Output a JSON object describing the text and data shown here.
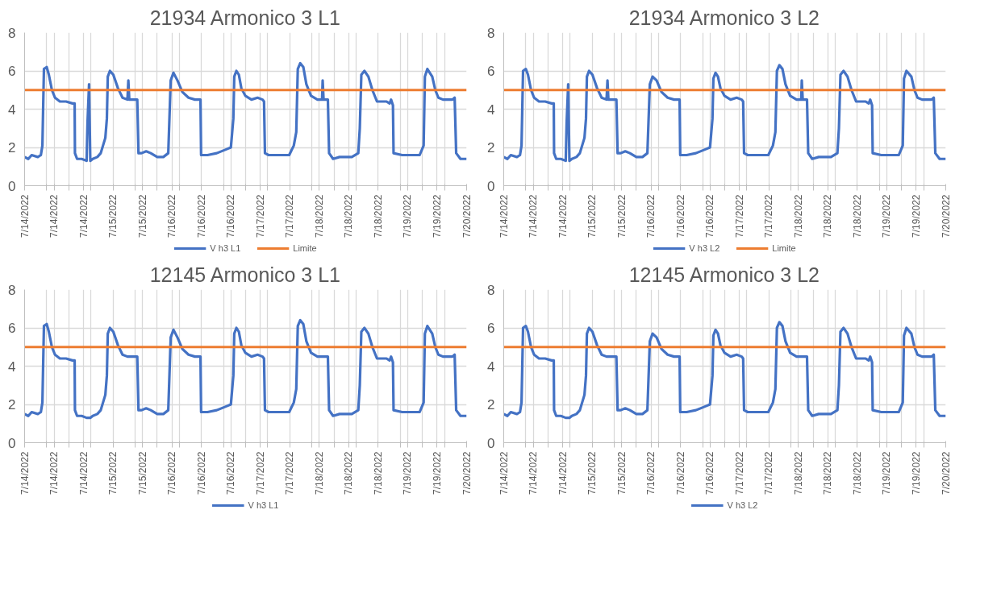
{
  "chart_data": [
    {
      "type": "line",
      "title": "21934 Armonico 3 L1",
      "legend": "bottom",
      "grid": true,
      "xlim": [
        "2022-07-14T00:00",
        "2022-07-20T00:00"
      ],
      "ylim": [
        0,
        8
      ],
      "yticks": [
        0,
        2,
        4,
        6,
        8
      ],
      "xticks": [
        {
          "value": "2022-07-14T00:00",
          "label": "7/14/2022"
        },
        {
          "value": "2022-07-14T07:12",
          "label": null
        },
        {
          "value": "2022-07-14T09:36",
          "label": "7/14/2022"
        },
        {
          "value": "2022-07-14T14:24",
          "label": null
        },
        {
          "value": "2022-07-14T19:12",
          "label": "7/14/2022"
        },
        {
          "value": "2022-07-14T21:36",
          "label": null
        },
        {
          "value": "2022-07-15T04:48",
          "label": "7/15/2022"
        },
        {
          "value": "2022-07-15T12:00",
          "label": null
        },
        {
          "value": "2022-07-15T14:24",
          "label": "7/15/2022"
        },
        {
          "value": "2022-07-15T19:12",
          "label": null
        },
        {
          "value": "2022-07-16T00:00",
          "label": "7/16/2022"
        },
        {
          "value": "2022-07-16T02:24",
          "label": null
        },
        {
          "value": "2022-07-16T09:36",
          "label": "7/16/2022"
        },
        {
          "value": "2022-07-16T16:48",
          "label": null
        },
        {
          "value": "2022-07-16T19:12",
          "label": "7/16/2022"
        },
        {
          "value": "2022-07-17T00:00",
          "label": null
        },
        {
          "value": "2022-07-17T04:48",
          "label": "7/17/2022"
        },
        {
          "value": "2022-07-17T07:12",
          "label": null
        },
        {
          "value": "2022-07-17T14:24",
          "label": "7/17/2022"
        },
        {
          "value": "2022-07-17T21:36",
          "label": null
        },
        {
          "value": "2022-07-18T00:00",
          "label": "7/18/2022"
        },
        {
          "value": "2022-07-18T04:48",
          "label": null
        },
        {
          "value": "2022-07-18T09:36",
          "label": "7/18/2022"
        },
        {
          "value": "2022-07-18T12:00",
          "label": null
        },
        {
          "value": "2022-07-18T19:12",
          "label": "7/18/2022"
        },
        {
          "value": "2022-07-19T02:24",
          "label": null
        },
        {
          "value": "2022-07-19T04:48",
          "label": "7/19/2022"
        },
        {
          "value": "2022-07-19T09:36",
          "label": null
        },
        {
          "value": "2022-07-19T14:24",
          "label": "7/19/2022"
        },
        {
          "value": "2022-07-19T16:48",
          "label": null
        },
        {
          "value": "2022-07-20T00:00",
          "label": "7/20/2022"
        }
      ],
      "x": [
        "2022-07-14T00:00",
        "2022-07-14T01:12",
        "2022-07-14T02:18",
        "2022-07-14T04:18",
        "2022-07-14T05:18",
        "2022-07-14T05:48",
        "2022-07-14T06:18",
        "2022-07-14T07:12",
        "2022-07-14T07:54",
        "2022-07-14T08:54",
        "2022-07-14T09:54",
        "2022-07-14T11:30",
        "2022-07-14T13:30",
        "2022-07-14T15:36",
        "2022-07-14T16:18",
        "2022-07-14T16:24",
        "2022-07-14T17:06",
        "2022-07-14T18:36",
        "2022-07-14T20:12",
        "2022-07-14T20:30",
        "2022-07-14T21:00",
        "2022-07-14T21:24",
        "2022-07-14T22:12",
        "2022-07-14T23:42",
        "2022-07-15T00:48",
        "2022-07-15T02:18",
        "2022-07-15T02:48",
        "2022-07-15T03:06",
        "2022-07-15T03:48",
        "2022-07-15T04:54",
        "2022-07-15T06:24",
        "2022-07-15T07:54",
        "2022-07-15T09:30",
        "2022-07-15T09:48",
        "2022-07-15T10:06",
        "2022-07-15T11:30",
        "2022-07-15T12:42",
        "2022-07-15T13:06",
        "2022-07-15T14:06",
        "2022-07-15T15:36",
        "2022-07-15T17:06",
        "2022-07-15T19:12",
        "2022-07-15T21:12",
        "2022-07-15T22:48",
        "2022-07-15T23:36",
        "2022-07-16T00:30",
        "2022-07-16T01:48",
        "2022-07-16T03:24",
        "2022-07-16T05:24",
        "2022-07-16T07:30",
        "2022-07-16T09:18",
        "2022-07-16T09:30",
        "2022-07-16T11:36",
        "2022-07-16T14:36",
        "2022-07-16T17:42",
        "2022-07-16T19:12",
        "2022-07-16T20:00",
        "2022-07-16T20:18",
        "2022-07-16T21:00",
        "2022-07-16T21:48",
        "2022-07-16T22:36",
        "2022-07-16T23:54",
        "2022-07-17T01:54",
        "2022-07-17T03:54",
        "2022-07-17T05:30",
        "2022-07-17T06:00",
        "2022-07-17T06:18",
        "2022-07-17T07:30",
        "2022-07-17T10:06",
        "2022-07-17T14:12",
        "2022-07-17T15:42",
        "2022-07-17T16:30",
        "2022-07-17T17:00",
        "2022-07-17T17:48",
        "2022-07-17T18:48",
        "2022-07-17T19:48",
        "2022-07-17T21:18",
        "2022-07-17T23:24",
        "2022-07-18T00:54",
        "2022-07-18T01:06",
        "2022-07-18T01:24",
        "2022-07-18T02:48",
        "2022-07-18T03:12",
        "2022-07-18T04:30",
        "2022-07-18T06:36",
        "2022-07-18T10:36",
        "2022-07-18T12:42",
        "2022-07-18T13:12",
        "2022-07-18T13:42",
        "2022-07-18T14:42",
        "2022-07-18T16:00",
        "2022-07-18T17:18",
        "2022-07-18T18:48",
        "2022-07-18T21:54",
        "2022-07-18T22:54",
        "2022-07-18T23:24",
        "2022-07-19T00:00",
        "2022-07-19T00:12",
        "2022-07-19T03:00",
        "2022-07-19T06:06",
        "2022-07-19T08:42",
        "2022-07-19T10:00",
        "2022-07-19T10:24",
        "2022-07-19T11:12",
        "2022-07-19T12:48",
        "2022-07-19T13:48",
        "2022-07-19T14:48",
        "2022-07-19T16:18",
        "2022-07-19T19:24",
        "2022-07-19T20:06",
        "2022-07-19T20:36",
        "2022-07-19T22:00",
        "2022-07-20T00:00"
      ],
      "series": [
        {
          "name": "V h3 L1",
          "color": "#4472c4",
          "values": [
            1.5,
            1.4,
            1.6,
            1.5,
            1.6,
            2.1,
            6.1,
            6.2,
            5.8,
            5.0,
            4.6,
            4.4,
            4.4,
            4.3,
            4.3,
            1.7,
            1.4,
            1.4,
            1.3,
            3.3,
            5.3,
            1.3,
            1.4,
            1.5,
            1.7,
            2.5,
            3.5,
            5.7,
            6.0,
            5.8,
            5.1,
            4.6,
            4.5,
            5.5,
            4.5,
            4.5,
            4.5,
            1.7,
            1.7,
            1.8,
            1.7,
            1.5,
            1.5,
            1.7,
            5.5,
            5.9,
            5.5,
            4.9,
            4.6,
            4.5,
            4.5,
            1.6,
            1.6,
            1.7,
            1.9,
            2.0,
            3.5,
            5.7,
            6.0,
            5.8,
            5.1,
            4.7,
            4.5,
            4.6,
            4.5,
            4.4,
            1.7,
            1.6,
            1.6,
            1.6,
            2.1,
            2.8,
            6.1,
            6.4,
            6.2,
            5.3,
            4.7,
            4.5,
            4.5,
            5.5,
            4.5,
            4.5,
            1.7,
            1.4,
            1.5,
            1.5,
            1.7,
            3.0,
            5.8,
            6.0,
            5.7,
            5.0,
            4.4,
            4.4,
            4.3,
            4.5,
            4.2,
            1.7,
            1.6,
            1.6,
            1.6,
            2.1,
            5.7,
            6.1,
            5.7,
            5.0,
            4.6,
            4.5,
            4.5,
            4.6,
            1.7,
            1.4,
            1.4
          ]
        },
        {
          "name": "Limite",
          "color": "#ed7d31",
          "x": [
            "2022-07-14T00:00",
            "2022-07-20T00:00"
          ],
          "values": [
            5,
            5
          ]
        }
      ]
    },
    {
      "type": "line",
      "title": "21934 Armonico 3 L2",
      "legend": "bottom",
      "grid": true,
      "xlim": [
        "2022-07-14T00:00",
        "2022-07-20T00:00"
      ],
      "ylim": [
        0,
        8
      ],
      "yticks": [
        0,
        2,
        4,
        6,
        8
      ],
      "xticks": [
        {
          "value": "2022-07-14T00:00",
          "label": "7/14/2022"
        },
        {
          "value": "2022-07-14T07:12",
          "label": null
        },
        {
          "value": "2022-07-14T09:36",
          "label": "7/14/2022"
        },
        {
          "value": "2022-07-14T14:24",
          "label": null
        },
        {
          "value": "2022-07-14T19:12",
          "label": "7/14/2022"
        },
        {
          "value": "2022-07-14T21:36",
          "label": null
        },
        {
          "value": "2022-07-15T04:48",
          "label": "7/15/2022"
        },
        {
          "value": "2022-07-15T12:00",
          "label": null
        },
        {
          "value": "2022-07-15T14:24",
          "label": "7/15/2022"
        },
        {
          "value": "2022-07-15T19:12",
          "label": null
        },
        {
          "value": "2022-07-16T00:00",
          "label": "7/16/2022"
        },
        {
          "value": "2022-07-16T02:24",
          "label": null
        },
        {
          "value": "2022-07-16T09:36",
          "label": "7/16/2022"
        },
        {
          "value": "2022-07-16T16:48",
          "label": null
        },
        {
          "value": "2022-07-16T19:12",
          "label": "7/16/2022"
        },
        {
          "value": "2022-07-17T00:00",
          "label": null
        },
        {
          "value": "2022-07-17T04:48",
          "label": "7/17/2022"
        },
        {
          "value": "2022-07-17T07:12",
          "label": null
        },
        {
          "value": "2022-07-17T14:24",
          "label": "7/17/2022"
        },
        {
          "value": "2022-07-17T21:36",
          "label": null
        },
        {
          "value": "2022-07-18T00:00",
          "label": "7/18/2022"
        },
        {
          "value": "2022-07-18T04:48",
          "label": null
        },
        {
          "value": "2022-07-18T09:36",
          "label": "7/18/2022"
        },
        {
          "value": "2022-07-18T12:00",
          "label": null
        },
        {
          "value": "2022-07-18T19:12",
          "label": "7/18/2022"
        },
        {
          "value": "2022-07-19T02:24",
          "label": null
        },
        {
          "value": "2022-07-19T04:48",
          "label": "7/19/2022"
        },
        {
          "value": "2022-07-19T09:36",
          "label": null
        },
        {
          "value": "2022-07-19T14:24",
          "label": "7/19/2022"
        },
        {
          "value": "2022-07-19T16:48",
          "label": null
        },
        {
          "value": "2022-07-20T00:00",
          "label": "7/20/2022"
        }
      ],
      "x": [
        "2022-07-14T00:00",
        "2022-07-14T01:12",
        "2022-07-14T02:18",
        "2022-07-14T04:18",
        "2022-07-14T05:18",
        "2022-07-14T05:48",
        "2022-07-14T06:18",
        "2022-07-14T07:12",
        "2022-07-14T07:54",
        "2022-07-14T08:54",
        "2022-07-14T09:54",
        "2022-07-14T11:30",
        "2022-07-14T13:30",
        "2022-07-14T15:36",
        "2022-07-14T16:18",
        "2022-07-14T16:24",
        "2022-07-14T17:06",
        "2022-07-14T18:36",
        "2022-07-14T20:12",
        "2022-07-14T20:30",
        "2022-07-14T21:00",
        "2022-07-14T21:24",
        "2022-07-14T22:12",
        "2022-07-14T23:42",
        "2022-07-15T00:48",
        "2022-07-15T02:18",
        "2022-07-15T02:48",
        "2022-07-15T03:06",
        "2022-07-15T03:48",
        "2022-07-15T04:54",
        "2022-07-15T06:24",
        "2022-07-15T07:54",
        "2022-07-15T09:30",
        "2022-07-15T09:48",
        "2022-07-15T10:06",
        "2022-07-15T11:30",
        "2022-07-15T12:42",
        "2022-07-15T13:06",
        "2022-07-15T14:06",
        "2022-07-15T15:36",
        "2022-07-15T17:06",
        "2022-07-15T19:12",
        "2022-07-15T21:12",
        "2022-07-15T22:48",
        "2022-07-15T23:36",
        "2022-07-16T00:30",
        "2022-07-16T01:48",
        "2022-07-16T03:24",
        "2022-07-16T05:24",
        "2022-07-16T07:30",
        "2022-07-16T09:18",
        "2022-07-16T09:30",
        "2022-07-16T11:36",
        "2022-07-16T14:36",
        "2022-07-16T17:42",
        "2022-07-16T19:12",
        "2022-07-16T20:00",
        "2022-07-16T20:18",
        "2022-07-16T21:00",
        "2022-07-16T21:48",
        "2022-07-16T22:36",
        "2022-07-16T23:54",
        "2022-07-17T01:54",
        "2022-07-17T03:54",
        "2022-07-17T05:30",
        "2022-07-17T06:00",
        "2022-07-17T06:18",
        "2022-07-17T07:30",
        "2022-07-17T10:06",
        "2022-07-17T14:12",
        "2022-07-17T15:42",
        "2022-07-17T16:30",
        "2022-07-17T17:00",
        "2022-07-17T17:48",
        "2022-07-17T18:48",
        "2022-07-17T19:48",
        "2022-07-17T21:18",
        "2022-07-17T23:24",
        "2022-07-18T00:54",
        "2022-07-18T01:06",
        "2022-07-18T01:24",
        "2022-07-18T02:48",
        "2022-07-18T03:12",
        "2022-07-18T04:30",
        "2022-07-18T06:36",
        "2022-07-18T10:36",
        "2022-07-18T12:42",
        "2022-07-18T13:12",
        "2022-07-18T13:42",
        "2022-07-18T14:42",
        "2022-07-18T16:00",
        "2022-07-18T17:18",
        "2022-07-18T18:48",
        "2022-07-18T21:54",
        "2022-07-18T22:54",
        "2022-07-18T23:24",
        "2022-07-19T00:00",
        "2022-07-19T00:12",
        "2022-07-19T03:00",
        "2022-07-19T06:06",
        "2022-07-19T08:42",
        "2022-07-19T10:00",
        "2022-07-19T10:24",
        "2022-07-19T11:12",
        "2022-07-19T12:48",
        "2022-07-19T13:48",
        "2022-07-19T14:48",
        "2022-07-19T16:18",
        "2022-07-19T19:24",
        "2022-07-19T20:06",
        "2022-07-19T20:36",
        "2022-07-19T22:00",
        "2022-07-20T00:00"
      ],
      "series": [
        {
          "name": "V h3 L2",
          "color": "#4472c4",
          "values": [
            1.5,
            1.4,
            1.6,
            1.5,
            1.6,
            2.1,
            6.0,
            6.1,
            5.8,
            5.0,
            4.6,
            4.4,
            4.4,
            4.3,
            4.3,
            1.7,
            1.4,
            1.4,
            1.3,
            3.3,
            5.3,
            1.3,
            1.4,
            1.5,
            1.7,
            2.5,
            3.5,
            5.7,
            6.0,
            5.8,
            5.1,
            4.6,
            4.5,
            5.5,
            4.5,
            4.5,
            4.5,
            1.7,
            1.7,
            1.8,
            1.7,
            1.5,
            1.5,
            1.7,
            5.3,
            5.7,
            5.5,
            4.9,
            4.6,
            4.5,
            4.5,
            1.6,
            1.6,
            1.7,
            1.9,
            2.0,
            3.5,
            5.6,
            5.9,
            5.7,
            5.1,
            4.7,
            4.5,
            4.6,
            4.5,
            4.4,
            1.7,
            1.6,
            1.6,
            1.6,
            2.1,
            2.8,
            6.0,
            6.3,
            6.1,
            5.3,
            4.7,
            4.5,
            4.5,
            5.5,
            4.5,
            4.5,
            1.7,
            1.4,
            1.5,
            1.5,
            1.7,
            3.0,
            5.8,
            6.0,
            5.7,
            5.0,
            4.4,
            4.4,
            4.3,
            4.5,
            4.2,
            1.7,
            1.6,
            1.6,
            1.6,
            2.1,
            5.6,
            6.0,
            5.7,
            5.0,
            4.6,
            4.5,
            4.5,
            4.6,
            1.7,
            1.4,
            1.4
          ]
        },
        {
          "name": "Limite",
          "color": "#ed7d31",
          "x": [
            "2022-07-14T00:00",
            "2022-07-20T00:00"
          ],
          "values": [
            5,
            5
          ]
        }
      ]
    },
    {
      "type": "line",
      "title": "12145 Armonico 3 L1",
      "legend": "bottom",
      "grid": true,
      "xlim": [
        "2022-07-14T00:00",
        "2022-07-20T00:00"
      ],
      "ylim": [
        0,
        8
      ],
      "yticks": [
        0,
        2,
        4,
        6,
        8
      ],
      "xticks": [
        {
          "value": "2022-07-14T00:00",
          "label": "7/14/2022"
        },
        {
          "value": "2022-07-14T07:12",
          "label": null
        },
        {
          "value": "2022-07-14T09:36",
          "label": "7/14/2022"
        },
        {
          "value": "2022-07-14T14:24",
          "label": null
        },
        {
          "value": "2022-07-14T19:12",
          "label": "7/14/2022"
        },
        {
          "value": "2022-07-14T21:36",
          "label": null
        },
        {
          "value": "2022-07-15T04:48",
          "label": "7/15/2022"
        },
        {
          "value": "2022-07-15T12:00",
          "label": null
        },
        {
          "value": "2022-07-15T14:24",
          "label": "7/15/2022"
        },
        {
          "value": "2022-07-15T19:12",
          "label": null
        },
        {
          "value": "2022-07-16T00:00",
          "label": "7/16/2022"
        },
        {
          "value": "2022-07-16T02:24",
          "label": null
        },
        {
          "value": "2022-07-16T09:36",
          "label": "7/16/2022"
        },
        {
          "value": "2022-07-16T16:48",
          "label": null
        },
        {
          "value": "2022-07-16T19:12",
          "label": "7/16/2022"
        },
        {
          "value": "2022-07-17T00:00",
          "label": null
        },
        {
          "value": "2022-07-17T04:48",
          "label": "7/17/2022"
        },
        {
          "value": "2022-07-17T07:12",
          "label": null
        },
        {
          "value": "2022-07-17T14:24",
          "label": "7/17/2022"
        },
        {
          "value": "2022-07-17T21:36",
          "label": null
        },
        {
          "value": "2022-07-18T00:00",
          "label": "7/18/2022"
        },
        {
          "value": "2022-07-18T04:48",
          "label": null
        },
        {
          "value": "2022-07-18T09:36",
          "label": "7/18/2022"
        },
        {
          "value": "2022-07-18T12:00",
          "label": null
        },
        {
          "value": "2022-07-18T19:12",
          "label": "7/18/2022"
        },
        {
          "value": "2022-07-19T02:24",
          "label": null
        },
        {
          "value": "2022-07-19T04:48",
          "label": "7/19/2022"
        },
        {
          "value": "2022-07-19T09:36",
          "label": null
        },
        {
          "value": "2022-07-19T14:24",
          "label": "7/19/2022"
        },
        {
          "value": "2022-07-19T16:48",
          "label": null
        },
        {
          "value": "2022-07-20T00:00",
          "label": "7/20/2022"
        }
      ],
      "x": [
        "2022-07-14T00:00",
        "2022-07-14T01:12",
        "2022-07-14T02:18",
        "2022-07-14T04:18",
        "2022-07-14T05:18",
        "2022-07-14T05:48",
        "2022-07-14T06:18",
        "2022-07-14T07:12",
        "2022-07-14T07:54",
        "2022-07-14T08:54",
        "2022-07-14T09:54",
        "2022-07-14T11:30",
        "2022-07-14T13:30",
        "2022-07-14T15:36",
        "2022-07-14T16:18",
        "2022-07-14T16:24",
        "2022-07-14T17:06",
        "2022-07-14T18:36",
        "2022-07-14T20:12",
        "2022-07-14T20:30",
        "2022-07-14T21:00",
        "2022-07-14T21:24",
        "2022-07-14T22:12",
        "2022-07-14T23:42",
        "2022-07-15T00:48",
        "2022-07-15T02:18",
        "2022-07-15T02:48",
        "2022-07-15T03:06",
        "2022-07-15T03:48",
        "2022-07-15T04:54",
        "2022-07-15T06:24",
        "2022-07-15T07:54",
        "2022-07-15T09:30",
        "2022-07-15T09:48",
        "2022-07-15T10:06",
        "2022-07-15T11:30",
        "2022-07-15T12:42",
        "2022-07-15T13:06",
        "2022-07-15T14:06",
        "2022-07-15T15:36",
        "2022-07-15T17:06",
        "2022-07-15T19:12",
        "2022-07-15T21:12",
        "2022-07-15T22:48",
        "2022-07-15T23:36",
        "2022-07-16T00:30",
        "2022-07-16T01:48",
        "2022-07-16T03:24",
        "2022-07-16T05:24",
        "2022-07-16T07:30",
        "2022-07-16T09:18",
        "2022-07-16T09:30",
        "2022-07-16T11:36",
        "2022-07-16T14:36",
        "2022-07-16T17:42",
        "2022-07-16T19:12",
        "2022-07-16T20:00",
        "2022-07-16T20:18",
        "2022-07-16T21:00",
        "2022-07-16T21:48",
        "2022-07-16T22:36",
        "2022-07-16T23:54",
        "2022-07-17T01:54",
        "2022-07-17T03:54",
        "2022-07-17T05:30",
        "2022-07-17T06:00",
        "2022-07-17T06:18",
        "2022-07-17T07:30",
        "2022-07-17T10:06",
        "2022-07-17T14:12",
        "2022-07-17T15:42",
        "2022-07-17T16:30",
        "2022-07-17T17:00",
        "2022-07-17T17:48",
        "2022-07-17T18:48",
        "2022-07-17T19:48",
        "2022-07-17T21:18",
        "2022-07-17T23:24",
        "2022-07-18T00:54",
        "2022-07-18T01:06",
        "2022-07-18T01:24",
        "2022-07-18T02:48",
        "2022-07-18T03:12",
        "2022-07-18T04:30",
        "2022-07-18T06:36",
        "2022-07-18T10:36",
        "2022-07-18T12:42",
        "2022-07-18T13:12",
        "2022-07-18T13:42",
        "2022-07-18T14:42",
        "2022-07-18T16:00",
        "2022-07-18T17:18",
        "2022-07-18T18:48",
        "2022-07-18T21:54",
        "2022-07-18T22:54",
        "2022-07-18T23:24",
        "2022-07-19T00:00",
        "2022-07-19T00:12",
        "2022-07-19T03:00",
        "2022-07-19T06:06",
        "2022-07-19T08:42",
        "2022-07-19T10:00",
        "2022-07-19T10:24",
        "2022-07-19T11:12",
        "2022-07-19T12:48",
        "2022-07-19T13:48",
        "2022-07-19T14:48",
        "2022-07-19T16:18",
        "2022-07-19T19:24",
        "2022-07-19T20:06",
        "2022-07-19T20:36",
        "2022-07-19T22:00",
        "2022-07-20T00:00"
      ],
      "series": [
        {
          "name": "V h3 L1",
          "color": "#4472c4",
          "values": [
            1.5,
            1.4,
            1.6,
            1.5,
            1.6,
            2.1,
            6.1,
            6.2,
            5.8,
            5.0,
            4.6,
            4.4,
            4.4,
            4.3,
            4.3,
            1.7,
            1.4,
            1.4,
            1.3,
            1.3,
            1.3,
            1.3,
            1.4,
            1.5,
            1.7,
            2.5,
            3.5,
            5.7,
            6.0,
            5.8,
            5.1,
            4.6,
            4.5,
            4.5,
            4.5,
            4.5,
            4.5,
            1.7,
            1.7,
            1.8,
            1.7,
            1.5,
            1.5,
            1.7,
            5.5,
            5.9,
            5.5,
            4.9,
            4.6,
            4.5,
            4.5,
            1.6,
            1.6,
            1.7,
            1.9,
            2.0,
            3.5,
            5.7,
            6.0,
            5.8,
            5.1,
            4.7,
            4.5,
            4.6,
            4.5,
            4.4,
            1.7,
            1.6,
            1.6,
            1.6,
            2.1,
            2.8,
            6.1,
            6.4,
            6.2,
            5.3,
            4.7,
            4.5,
            4.5,
            4.5,
            4.5,
            4.5,
            1.7,
            1.4,
            1.5,
            1.5,
            1.7,
            3.0,
            5.8,
            6.0,
            5.7,
            5.0,
            4.4,
            4.4,
            4.3,
            4.5,
            4.2,
            1.7,
            1.6,
            1.6,
            1.6,
            2.1,
            5.7,
            6.1,
            5.7,
            5.0,
            4.6,
            4.5,
            4.5,
            4.6,
            1.7,
            1.4,
            1.4
          ]
        },
        {
          "color": "#ed7d31",
          "x": [
            "2022-07-14T00:00",
            "2022-07-20T00:00"
          ],
          "values": [
            5,
            5
          ]
        }
      ]
    },
    {
      "type": "line",
      "title": "12145 Armonico 3 L2",
      "legend": "bottom",
      "grid": true,
      "xlim": [
        "2022-07-14T00:00",
        "2022-07-20T00:00"
      ],
      "ylim": [
        0,
        8
      ],
      "yticks": [
        0,
        2,
        4,
        6,
        8
      ],
      "xticks": [
        {
          "value": "2022-07-14T00:00",
          "label": "7/14/2022"
        },
        {
          "value": "2022-07-14T07:12",
          "label": null
        },
        {
          "value": "2022-07-14T09:36",
          "label": "7/14/2022"
        },
        {
          "value": "2022-07-14T14:24",
          "label": null
        },
        {
          "value": "2022-07-14T19:12",
          "label": "7/14/2022"
        },
        {
          "value": "2022-07-14T21:36",
          "label": null
        },
        {
          "value": "2022-07-15T04:48",
          "label": "7/15/2022"
        },
        {
          "value": "2022-07-15T12:00",
          "label": null
        },
        {
          "value": "2022-07-15T14:24",
          "label": "7/15/2022"
        },
        {
          "value": "2022-07-15T19:12",
          "label": null
        },
        {
          "value": "2022-07-16T00:00",
          "label": "7/16/2022"
        },
        {
          "value": "2022-07-16T02:24",
          "label": null
        },
        {
          "value": "2022-07-16T09:36",
          "label": "7/16/2022"
        },
        {
          "value": "2022-07-16T16:48",
          "label": null
        },
        {
          "value": "2022-07-16T19:12",
          "label": "7/16/2022"
        },
        {
          "value": "2022-07-17T00:00",
          "label": null
        },
        {
          "value": "2022-07-17T04:48",
          "label": "7/17/2022"
        },
        {
          "value": "2022-07-17T07:12",
          "label": null
        },
        {
          "value": "2022-07-17T14:24",
          "label": "7/17/2022"
        },
        {
          "value": "2022-07-17T21:36",
          "label": null
        },
        {
          "value": "2022-07-18T00:00",
          "label": "7/18/2022"
        },
        {
          "value": "2022-07-18T04:48",
          "label": null
        },
        {
          "value": "2022-07-18T09:36",
          "label": "7/18/2022"
        },
        {
          "value": "2022-07-18T12:00",
          "label": null
        },
        {
          "value": "2022-07-18T19:12",
          "label": "7/18/2022"
        },
        {
          "value": "2022-07-19T02:24",
          "label": null
        },
        {
          "value": "2022-07-19T04:48",
          "label": "7/19/2022"
        },
        {
          "value": "2022-07-19T09:36",
          "label": null
        },
        {
          "value": "2022-07-19T14:24",
          "label": "7/19/2022"
        },
        {
          "value": "2022-07-19T16:48",
          "label": null
        },
        {
          "value": "2022-07-20T00:00",
          "label": "7/20/2022"
        }
      ],
      "x": [
        "2022-07-14T00:00",
        "2022-07-14T01:12",
        "2022-07-14T02:18",
        "2022-07-14T04:18",
        "2022-07-14T05:18",
        "2022-07-14T05:48",
        "2022-07-14T06:18",
        "2022-07-14T07:12",
        "2022-07-14T07:54",
        "2022-07-14T08:54",
        "2022-07-14T09:54",
        "2022-07-14T11:30",
        "2022-07-14T13:30",
        "2022-07-14T15:36",
        "2022-07-14T16:18",
        "2022-07-14T16:24",
        "2022-07-14T17:06",
        "2022-07-14T18:36",
        "2022-07-14T20:12",
        "2022-07-14T20:30",
        "2022-07-14T21:00",
        "2022-07-14T21:24",
        "2022-07-14T22:12",
        "2022-07-14T23:42",
        "2022-07-15T00:48",
        "2022-07-15T02:18",
        "2022-07-15T02:48",
        "2022-07-15T03:06",
        "2022-07-15T03:48",
        "2022-07-15T04:54",
        "2022-07-15T06:24",
        "2022-07-15T07:54",
        "2022-07-15T09:30",
        "2022-07-15T09:48",
        "2022-07-15T10:06",
        "2022-07-15T11:30",
        "2022-07-15T12:42",
        "2022-07-15T13:06",
        "2022-07-15T14:06",
        "2022-07-15T15:36",
        "2022-07-15T17:06",
        "2022-07-15T19:12",
        "2022-07-15T21:12",
        "2022-07-15T22:48",
        "2022-07-15T23:36",
        "2022-07-16T00:30",
        "2022-07-16T01:48",
        "2022-07-16T03:24",
        "2022-07-16T05:24",
        "2022-07-16T07:30",
        "2022-07-16T09:18",
        "2022-07-16T09:30",
        "2022-07-16T11:36",
        "2022-07-16T14:36",
        "2022-07-16T17:42",
        "2022-07-16T19:12",
        "2022-07-16T20:00",
        "2022-07-16T20:18",
        "2022-07-16T21:00",
        "2022-07-16T21:48",
        "2022-07-16T22:36",
        "2022-07-16T23:54",
        "2022-07-17T01:54",
        "2022-07-17T03:54",
        "2022-07-17T05:30",
        "2022-07-17T06:00",
        "2022-07-17T06:18",
        "2022-07-17T07:30",
        "2022-07-17T10:06",
        "2022-07-17T14:12",
        "2022-07-17T15:42",
        "2022-07-17T16:30",
        "2022-07-17T17:00",
        "2022-07-17T17:48",
        "2022-07-17T18:48",
        "2022-07-17T19:48",
        "2022-07-17T21:18",
        "2022-07-17T23:24",
        "2022-07-18T00:54",
        "2022-07-18T01:06",
        "2022-07-18T01:24",
        "2022-07-18T02:48",
        "2022-07-18T03:12",
        "2022-07-18T04:30",
        "2022-07-18T06:36",
        "2022-07-18T10:36",
        "2022-07-18T12:42",
        "2022-07-18T13:12",
        "2022-07-18T13:42",
        "2022-07-18T14:42",
        "2022-07-18T16:00",
        "2022-07-18T17:18",
        "2022-07-18T18:48",
        "2022-07-18T21:54",
        "2022-07-18T22:54",
        "2022-07-18T23:24",
        "2022-07-19T00:00",
        "2022-07-19T00:12",
        "2022-07-19T03:00",
        "2022-07-19T06:06",
        "2022-07-19T08:42",
        "2022-07-19T10:00",
        "2022-07-19T10:24",
        "2022-07-19T11:12",
        "2022-07-19T12:48",
        "2022-07-19T13:48",
        "2022-07-19T14:48",
        "2022-07-19T16:18",
        "2022-07-19T19:24",
        "2022-07-19T20:06",
        "2022-07-19T20:36",
        "2022-07-19T22:00",
        "2022-07-20T00:00"
      ],
      "series": [
        {
          "name": "V h3 L2",
          "color": "#4472c4",
          "values": [
            1.5,
            1.4,
            1.6,
            1.5,
            1.6,
            2.1,
            6.0,
            6.1,
            5.8,
            5.0,
            4.6,
            4.4,
            4.4,
            4.3,
            4.3,
            1.7,
            1.4,
            1.4,
            1.3,
            1.3,
            1.3,
            1.3,
            1.4,
            1.5,
            1.7,
            2.5,
            3.5,
            5.7,
            6.0,
            5.8,
            5.1,
            4.6,
            4.5,
            4.5,
            4.5,
            4.5,
            4.5,
            1.7,
            1.7,
            1.8,
            1.7,
            1.5,
            1.5,
            1.7,
            5.3,
            5.7,
            5.5,
            4.9,
            4.6,
            4.5,
            4.5,
            1.6,
            1.6,
            1.7,
            1.9,
            2.0,
            3.5,
            5.6,
            5.9,
            5.7,
            5.1,
            4.7,
            4.5,
            4.6,
            4.5,
            4.4,
            1.7,
            1.6,
            1.6,
            1.6,
            2.1,
            2.8,
            6.0,
            6.3,
            6.1,
            5.3,
            4.7,
            4.5,
            4.5,
            4.5,
            4.5,
            4.5,
            1.7,
            1.4,
            1.5,
            1.5,
            1.7,
            3.0,
            5.8,
            6.0,
            5.7,
            5.0,
            4.4,
            4.4,
            4.3,
            4.5,
            4.2,
            1.7,
            1.6,
            1.6,
            1.6,
            2.1,
            5.6,
            6.0,
            5.7,
            5.0,
            4.6,
            4.5,
            4.5,
            4.6,
            1.7,
            1.4,
            1.4
          ]
        },
        {
          "color": "#ed7d31",
          "x": [
            "2022-07-14T00:00",
            "2022-07-20T00:00"
          ],
          "values": [
            5,
            5
          ]
        }
      ]
    }
  ]
}
